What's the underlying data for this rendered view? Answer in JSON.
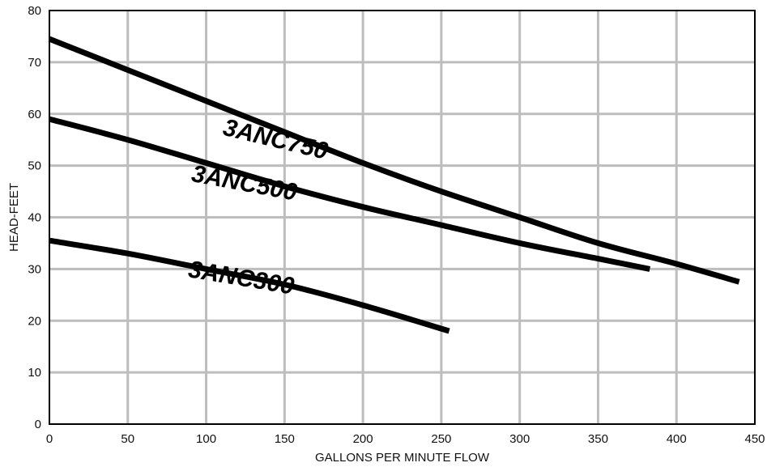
{
  "chart_data": {
    "type": "line",
    "title": "",
    "xlabel": "GALLONS PER MINUTE FLOW",
    "ylabel": "HEAD-FEET",
    "xlim": [
      0,
      450
    ],
    "ylim": [
      0,
      80
    ],
    "xticks": [
      0,
      50,
      100,
      150,
      200,
      250,
      300,
      350,
      400,
      450
    ],
    "yticks": [
      0,
      10,
      20,
      30,
      40,
      50,
      60,
      70,
      80
    ],
    "grid": true,
    "legend": "none",
    "colors": {
      "line": "#000000",
      "grid": "#bdbdbd",
      "frame": "#000000"
    },
    "series": [
      {
        "name": "3ANC750",
        "x": [
          0,
          50,
          100,
          150,
          200,
          250,
          300,
          350,
          400,
          440
        ],
        "y": [
          74.5,
          68.5,
          62.5,
          56.5,
          50.5,
          45,
          40,
          35,
          31,
          27.5
        ]
      },
      {
        "name": "3ANC500",
        "x": [
          0,
          50,
          100,
          150,
          200,
          250,
          300,
          350,
          383
        ],
        "y": [
          59,
          55,
          50.5,
          46,
          42,
          38.5,
          35,
          32,
          30
        ]
      },
      {
        "name": "3ANC300",
        "x": [
          0,
          50,
          100,
          150,
          200,
          255
        ],
        "y": [
          35.5,
          33,
          30,
          27,
          23,
          18
        ]
      }
    ]
  }
}
